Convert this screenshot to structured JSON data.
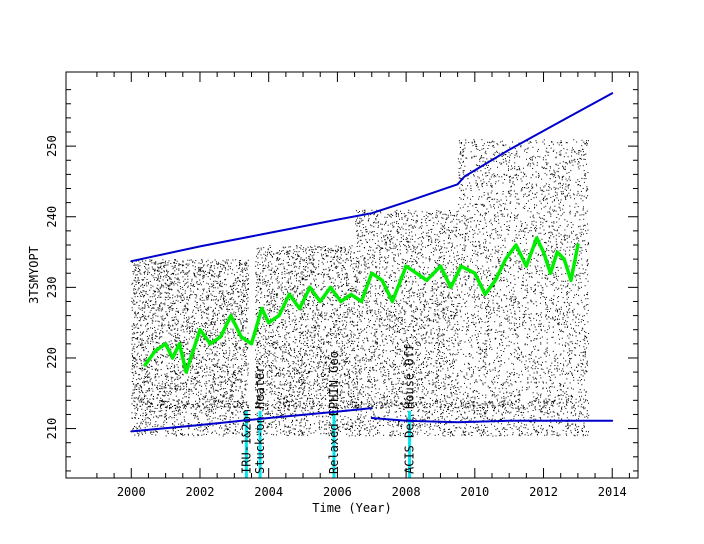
{
  "chart_data": {
    "type": "scatter",
    "xlabel": "Time (Year)",
    "ylabel": "3TSMYOPT",
    "xlim": [
      1998.1,
      2014.75
    ],
    "ylim": [
      203,
      260.5
    ],
    "x_ticks": [
      2000,
      2002,
      2004,
      2006,
      2008,
      2010,
      2012,
      2014
    ],
    "y_ticks": [
      210,
      220,
      230,
      240,
      250
    ],
    "grid": false,
    "legend": "none",
    "colors": {
      "scatter": "#000000",
      "moving_average": "#00ee00",
      "envelope": "#0000cc",
      "event_marker": "#00e5ee"
    },
    "scatter_density": [
      {
        "x_start": 2000.0,
        "x_end": 2003.4,
        "y_low": 213,
        "y_high": 234
      },
      {
        "x_start": 2003.6,
        "x_end": 2006.5,
        "y_low": 213,
        "y_high": 236
      },
      {
        "x_start": 2006.5,
        "x_end": 2009.5,
        "y_low": 213,
        "y_high": 241
      },
      {
        "x_start": 2009.5,
        "x_end": 2013.3,
        "y_low": 213,
        "y_high": 251
      }
    ],
    "series": [
      {
        "role": "moving_average",
        "x": [
          2000.4,
          2000.7,
          2001.0,
          2001.2,
          2001.4,
          2001.6,
          2001.8,
          2002.0,
          2002.3,
          2002.6,
          2002.9,
          2003.2,
          2003.5,
          2003.8,
          2004.0,
          2004.3,
          2004.6,
          2004.9,
          2005.2,
          2005.5,
          2005.8,
          2006.1,
          2006.4,
          2006.7,
          2007.0,
          2007.3,
          2007.6,
          2008.0,
          2008.3,
          2008.6,
          2009.0,
          2009.3,
          2009.6,
          2010.0,
          2010.3,
          2010.6,
          2010.9,
          2011.2,
          2011.5,
          2011.8,
          2012.0,
          2012.2,
          2012.4,
          2012.6,
          2012.8,
          2013.0
        ],
        "y": [
          219,
          221,
          222,
          220,
          222,
          218,
          221,
          224,
          222,
          223,
          226,
          223,
          222,
          227,
          225,
          226,
          229,
          227,
          230,
          228,
          230,
          228,
          229,
          228,
          232,
          231,
          228,
          233,
          232,
          231,
          233,
          230,
          233,
          232,
          229,
          231,
          234,
          236,
          233,
          237,
          235,
          232,
          235,
          234,
          231,
          236
        ]
      },
      {
        "role": "upper_envelope",
        "x": [
          2000.0,
          2002.0,
          2004.0,
          2006.0,
          2007.0,
          2008.0,
          2009.5,
          2009.7,
          2011.0,
          2012.5,
          2014.0
        ],
        "y": [
          233.7,
          235.8,
          237.7,
          239.6,
          240.5,
          242.1,
          244.6,
          245.7,
          249.5,
          253.5,
          257.5
        ]
      },
      {
        "role": "lower_envelope_segment_1",
        "x": [
          2000.0,
          2002.0,
          2004.0,
          2006.0,
          2007.0
        ],
        "y": [
          209.6,
          210.5,
          211.5,
          212.4,
          212.9
        ]
      },
      {
        "role": "lower_envelope_segment_2",
        "x": [
          2007.0,
          2008.0,
          2009.5,
          2011.0,
          2014.0
        ],
        "y": [
          211.5,
          211.1,
          210.9,
          211.1,
          211.1
        ]
      }
    ],
    "events": [
      {
        "x": 2003.35,
        "label": "IRU-1&2on"
      },
      {
        "x": 2003.75,
        "label": "Stuck-on Heater"
      },
      {
        "x": 2005.9,
        "label": "Relaxed EPHIN Geo"
      },
      {
        "x": 2008.1,
        "label": "ACIS Det House Off"
      }
    ]
  }
}
